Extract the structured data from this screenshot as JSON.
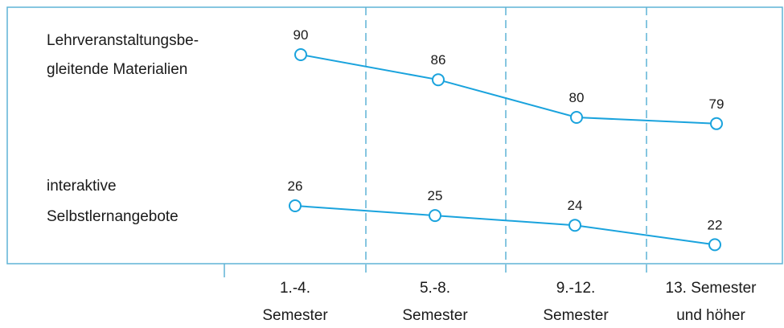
{
  "chart_data": {
    "type": "line",
    "categories": [
      [
        "1.-4.",
        "Semester"
      ],
      [
        "5.-8.",
        "Semester"
      ],
      [
        "9.-12.",
        "Semester"
      ],
      [
        "13. Semester",
        "und höher"
      ]
    ],
    "series": [
      {
        "name_lines": [
          "Lehrveranstaltungsbe-",
          "gleitende Materialien"
        ],
        "values": [
          90,
          86,
          80,
          79
        ]
      },
      {
        "name_lines": [
          "interaktive",
          "Selbstlernangebote"
        ],
        "values": [
          26,
          25,
          24,
          22
        ]
      }
    ],
    "line_color": "#1aa3dd",
    "frame_color": "#5fb3d6",
    "grid": "dashed vertical separators",
    "legend": "left, inline labels"
  }
}
